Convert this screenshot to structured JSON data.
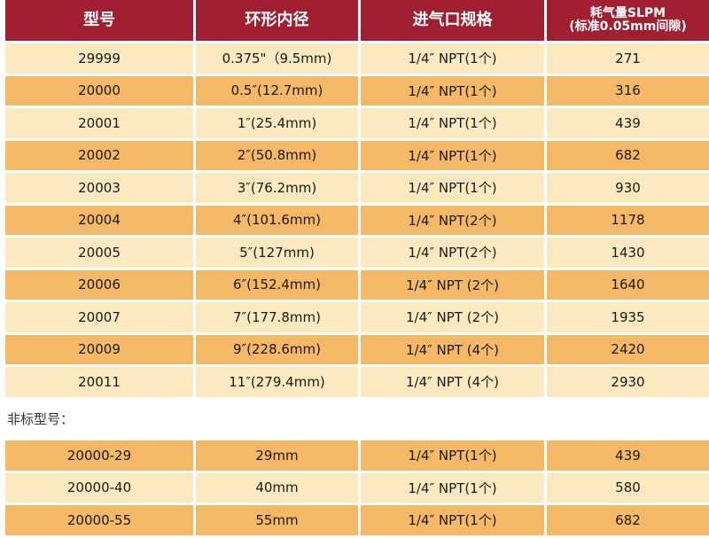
{
  "colors": {
    "header": "#A21F32",
    "row_light": "#FDE9C0",
    "row_dark": "#F5B866"
  },
  "headers": [
    "型号",
    "环形内径",
    "进气口规格",
    "耗气量SLPM\n(标准0.05mm间隙)"
  ],
  "standard_rows": [
    [
      "29999",
      "0.375\"（9.5mm)",
      "1/4″ NPT(1个)",
      "271"
    ],
    [
      "20000",
      "0.5″(12.7mm)",
      "1/4″ NPT(1个)",
      "316"
    ],
    [
      "20001",
      "1″(25.4mm)",
      "1/4″ NPT(1个)",
      "439"
    ],
    [
      "20002",
      "2″(50.8mm)",
      "1/4″ NPT(1个)",
      "682"
    ],
    [
      "20003",
      "3″(76.2mm)",
      "1/4″ NPT(1个)",
      "930"
    ],
    [
      "20004",
      "4″(101.6mm)",
      "1/4″ NPT(2个)",
      "1178"
    ],
    [
      "20005",
      "5″(127mm)",
      "1/4″ NPT(2个)",
      "1430"
    ],
    [
      "20006",
      "6″(152.4mm)",
      "1/4″ NPT (2个)",
      "1640"
    ],
    [
      "20007",
      "7″(177.8mm)",
      "1/4″ NPT (2个)",
      "1935"
    ],
    [
      "20009",
      "9″(228.6mm)",
      "1/4″ NPT (4个)",
      "2420"
    ],
    [
      "20011",
      "11″(279.4mm)",
      "1/4″ NPT (4个)",
      "2930"
    ]
  ],
  "nonstandard_label": "非标型号：",
  "nonstandard_rows": [
    [
      "20000-29",
      "29mm",
      "1/4″ NPT(1个)",
      "439"
    ],
    [
      "20000-40",
      "40mm",
      "1/4″ NPT(1个)",
      "580"
    ],
    [
      "20000-55",
      "55mm",
      "1/4″ NPT(1个)",
      "682"
    ]
  ]
}
